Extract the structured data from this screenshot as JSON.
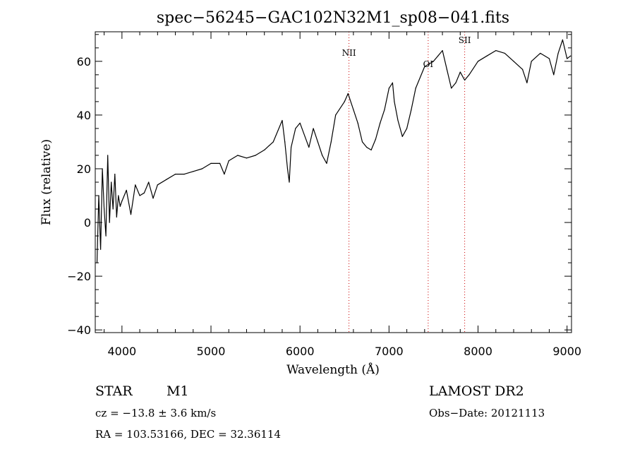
{
  "chart_data": {
    "type": "line",
    "title": "spec−56245−GAC102N32M1_sp08−041.fits",
    "xlabel": "Wavelength (Å)",
    "ylabel": "Flux (relative)",
    "xlim": [
      3700,
      9050
    ],
    "ylim": [
      -41,
      71
    ],
    "x_ticks": [
      4000,
      5000,
      6000,
      7000,
      8000,
      9000
    ],
    "x_tick_labels": [
      "4000",
      "5000",
      "6000",
      "7000",
      "8000",
      "9000"
    ],
    "y_ticks": [
      -40,
      -20,
      0,
      20,
      40,
      60
    ],
    "y_tick_labels": [
      "−40",
      "−20",
      "0",
      "20",
      "40",
      "60"
    ],
    "grid": false,
    "line_color": "#000000",
    "marker_line_color": "#cc0000",
    "series": [
      {
        "x": [
          3720,
          3740,
          3760,
          3780,
          3800,
          3820,
          3840,
          3860,
          3880,
          3900,
          3920,
          3940,
          3960,
          3980,
          4000,
          4050,
          4100,
          4150,
          4200,
          4250,
          4300,
          4350,
          4400,
          4500,
          4600,
          4700,
          4800,
          4900,
          5000,
          5100,
          5150,
          5200,
          5300,
          5400,
          5500,
          5600,
          5700,
          5800,
          5830,
          5860,
          5880,
          5900,
          5950,
          6000,
          6100,
          6150,
          6200,
          6250,
          6300,
          6350,
          6400,
          6500,
          6540,
          6560,
          6600,
          6650,
          6700,
          6750,
          6800,
          6850,
          6900,
          6950,
          7000,
          7040,
          7060,
          7100,
          7150,
          7200,
          7250,
          7300,
          7400,
          7500,
          7550,
          7600,
          7650,
          7700,
          7750,
          7800,
          7850,
          7900,
          8000,
          8100,
          8200,
          8300,
          8400,
          8500,
          8550,
          8600,
          8700,
          8800,
          8850,
          8900,
          8950,
          9000,
          9040
        ],
        "y": [
          -15,
          10,
          -10,
          20,
          5,
          -5,
          25,
          0,
          15,
          5,
          18,
          2,
          10,
          6,
          8,
          12,
          3,
          14,
          10,
          11,
          15,
          9,
          14,
          16,
          18,
          18,
          19,
          20,
          22,
          22,
          18,
          23,
          25,
          24,
          25,
          27,
          30,
          38,
          30,
          20,
          15,
          28,
          35,
          37,
          28,
          35,
          30,
          25,
          22,
          30,
          40,
          45,
          48,
          46,
          42,
          37,
          30,
          28,
          27,
          31,
          37,
          42,
          50,
          52,
          45,
          38,
          32,
          35,
          42,
          50,
          58,
          60,
          62,
          64,
          57,
          50,
          52,
          56,
          53,
          55,
          60,
          62,
          64,
          63,
          60,
          57,
          52,
          60,
          63,
          61,
          55,
          63,
          68,
          61,
          62
        ]
      }
    ],
    "line_markers": [
      {
        "label": "NII",
        "x": 6550
      },
      {
        "label": "OI",
        "x": 7440
      },
      {
        "label": "SII",
        "x": 7850
      }
    ]
  },
  "info": {
    "object_class": "STAR",
    "subclass": "M1",
    "survey": "LAMOST DR2",
    "velocity": "cz = −13.8 ± 3.6 km/s",
    "obs_date": "Obs−Date: 20121113",
    "coords": "RA = 103.53166, DEC =  32.36114"
  }
}
